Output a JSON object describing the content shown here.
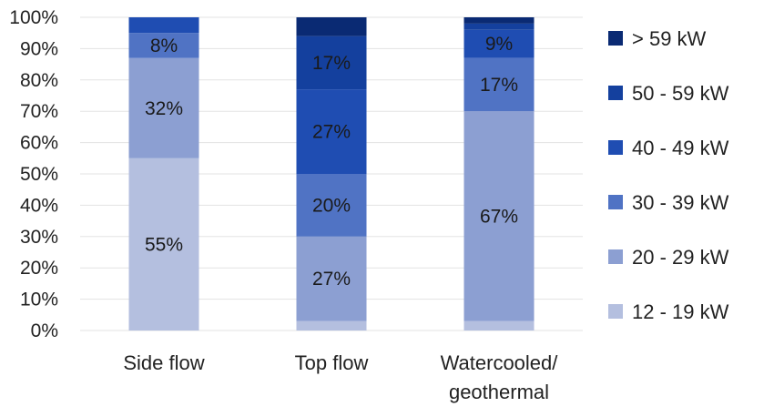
{
  "chart_data": {
    "type": "bar",
    "stacked": true,
    "normalized": true,
    "title": "",
    "xlabel": "",
    "ylabel": "",
    "ylim": [
      0,
      100
    ],
    "yticks": [
      "0%",
      "10%",
      "20%",
      "30%",
      "40%",
      "50%",
      "60%",
      "70%",
      "80%",
      "90%",
      "100%"
    ],
    "yticks_values": [
      0,
      10,
      20,
      30,
      40,
      50,
      60,
      70,
      80,
      90,
      100
    ],
    "categories": [
      {
        "lines": [
          "Side flow"
        ]
      },
      {
        "lines": [
          "Top flow"
        ]
      },
      {
        "lines": [
          "Watercooled/",
          "geothermal"
        ]
      }
    ],
    "series": [
      {
        "name": "12 - 19 kW",
        "color": "#b4bfdf",
        "values": [
          55,
          3,
          3
        ],
        "labels": [
          "55%",
          "",
          ""
        ]
      },
      {
        "name": "20 - 29 kW",
        "color": "#8c9fd2",
        "values": [
          32,
          27,
          67
        ],
        "labels": [
          "32%",
          "27%",
          "67%"
        ]
      },
      {
        "name": "30 - 39 kW",
        "color": "#5073c4",
        "values": [
          8,
          20,
          17
        ],
        "labels": [
          "8%",
          "20%",
          "17%"
        ]
      },
      {
        "name": "40 - 49 kW",
        "color": "#1f4db2",
        "values": [
          5,
          27,
          9
        ],
        "labels": [
          "",
          "27%",
          "9%"
        ]
      },
      {
        "name": "50 - 59 kW",
        "color": "#14409e",
        "values": [
          0,
          17,
          2
        ],
        "labels": [
          "",
          "17%",
          ""
        ]
      },
      {
        "name": "> 59 kW",
        "color": "#0a2a73",
        "values": [
          0,
          6,
          2
        ],
        "labels": [
          "",
          "",
          ""
        ]
      }
    ],
    "legend_position": "right"
  }
}
